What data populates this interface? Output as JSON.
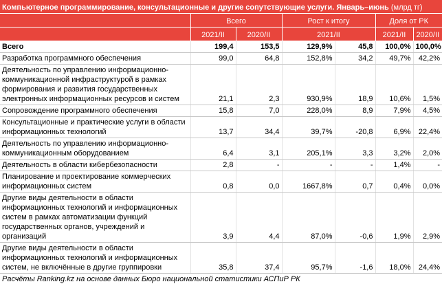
{
  "header": {
    "title": "Компьютерное программирование, консультационные и другие сопутствующие услуги. Январь–июнь",
    "unit": "(млрд тг)"
  },
  "table": {
    "groups": [
      "Всего",
      "Рост к итогу",
      "Доля от РК"
    ],
    "subheaders": [
      "2021/II",
      "2020/II",
      "2021/II",
      "2021/II",
      "2020/II"
    ],
    "rows": [
      [
        "Всего",
        "199,4",
        "153,5",
        "129,9%",
        "45,8",
        "100,0%",
        "100,0%"
      ],
      [
        "Разработка программного обеспечения",
        "99,0",
        "64,8",
        "152,8%",
        "34,2",
        "49,7%",
        "42,2%"
      ],
      [
        "Деятельность по управлению информационно-коммуникационной инфраструктурой в рамках формирования и развития государственных электронных информационных ресурсов и систем",
        "21,1",
        "2,3",
        "930,9%",
        "18,9",
        "10,6%",
        "1,5%"
      ],
      [
        "Сопровождение программного обеспечения",
        "15,8",
        "7,0",
        "228,0%",
        "8,9",
        "7,9%",
        "4,5%"
      ],
      [
        "Консультационные и практические услуги в области информационных технологий",
        "13,7",
        "34,4",
        "39,7%",
        "-20,8",
        "6,9%",
        "22,4%"
      ],
      [
        "Деятельность по управлению информационно-коммуникационным оборудованием",
        "6,4",
        "3,1",
        "205,1%",
        "3,3",
        "3,2%",
        "2,0%"
      ],
      [
        "Деятельность в области кибербезопасности",
        "2,8",
        "-",
        "-",
        "-",
        "1,4%",
        "-"
      ],
      [
        "Планирование и проектирование коммерческих информационных систем",
        "0,8",
        "0,0",
        "1667,8%",
        "0,7",
        "0,4%",
        "0,0%"
      ],
      [
        "Другие виды деятельности в области информационных технологий и информационных систем в рамках автоматизации функций государственных органов, учреждений и организаций",
        "3,9",
        "4,4",
        "87,0%",
        "-0,6",
        "1,9%",
        "2,9%"
      ],
      [
        "Другие виды деятельности в области информационных технологий и информационных систем, не включённые в другие группировки",
        "35,8",
        "37,4",
        "95,7%",
        "-1,6",
        "18,0%",
        "24,4%"
      ]
    ]
  },
  "footer": {
    "source": "Расчёты Ranking.kz на основе данных  Бюро национальной статистики АСПиР РК"
  }
}
